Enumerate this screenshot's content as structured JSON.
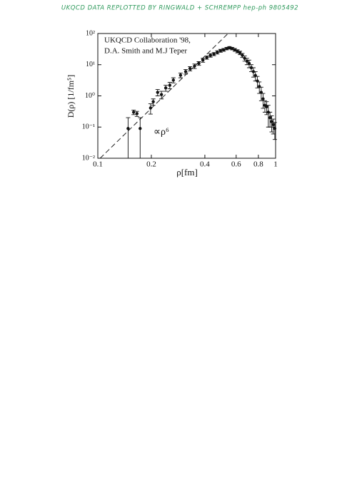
{
  "chart_data": {
    "type": "scatter",
    "title": "UKQCD DATA REPLOTTED BY RINGWALD + SCHREMPP hep-ph 9805492",
    "title_color": "#2f9a5c",
    "annotation": [
      "UKQCD Collaboration '98,",
      "D.A. Smith and M.J Teper"
    ],
    "x_label": "ρ[fm]",
    "y_label": "D(ρ) [1/fm⁵]",
    "xscale": "log",
    "yscale": "log",
    "xlim": [
      0.1,
      1
    ],
    "ylim": [
      0.01,
      100
    ],
    "xticks": [
      0.1,
      0.2,
      0.4,
      0.6,
      0.8,
      1
    ],
    "yticks": [
      {
        "value": 0.01,
        "label": "10⁻²"
      },
      {
        "value": 0.1,
        "label": "10⁻¹"
      },
      {
        "value": 1,
        "label": "10⁰"
      },
      {
        "value": 10,
        "label": "10¹"
      },
      {
        "value": 100,
        "label": "10²"
      }
    ],
    "series": [
      {
        "name": "∝ρ⁶",
        "kind": "line",
        "dashed": true,
        "color": "#222222",
        "x": [
          0.103,
          0.54
        ],
        "values": [
          0.01,
          100
        ]
      },
      {
        "kind": "points",
        "color": "#111111",
        "x": [
          0.148,
          0.159,
          0.166,
          0.173,
          0.198,
          0.205,
          0.217,
          0.228,
          0.241,
          0.254,
          0.266,
          0.292,
          0.312,
          0.33,
          0.35,
          0.37,
          0.39,
          0.41,
          0.43,
          0.45,
          0.47,
          0.49,
          0.51,
          0.53,
          0.55,
          0.57,
          0.59,
          0.61,
          0.63,
          0.65,
          0.67,
          0.69,
          0.71,
          0.73,
          0.75,
          0.77,
          0.79,
          0.81,
          0.83,
          0.85,
          0.87,
          0.89,
          0.91,
          0.93,
          0.95,
          0.97,
          0.99
        ],
        "values": [
          0.09,
          0.3,
          0.27,
          0.09,
          0.41,
          0.65,
          1.3,
          1.1,
          1.8,
          2.2,
          3.2,
          4.6,
          6,
          7.5,
          9,
          11,
          14,
          17,
          20,
          22,
          25,
          28,
          30,
          33,
          35,
          33,
          30,
          27,
          24,
          20,
          16,
          13,
          11,
          8,
          6,
          4.5,
          3,
          2,
          1.3,
          0.8,
          0.5,
          0.45,
          0.3,
          0.2,
          0.15,
          0.12,
          0.09
        ],
        "errors": [
          0.11,
          0.05,
          0.05,
          0.11,
          0.15,
          0.15,
          0.3,
          0.3,
          0.4,
          0.5,
          0.6,
          0.8,
          1,
          1.2,
          1.5,
          1.5,
          2,
          2,
          2.5,
          2.5,
          3,
          3,
          3,
          3,
          3,
          3,
          3,
          3,
          3,
          3,
          3,
          3,
          3,
          2,
          2,
          1.5,
          1.2,
          0.8,
          0.6,
          0.4,
          0.2,
          0.2,
          0.2,
          0.1,
          0.08,
          0.06,
          0.05
        ]
      }
    ]
  }
}
